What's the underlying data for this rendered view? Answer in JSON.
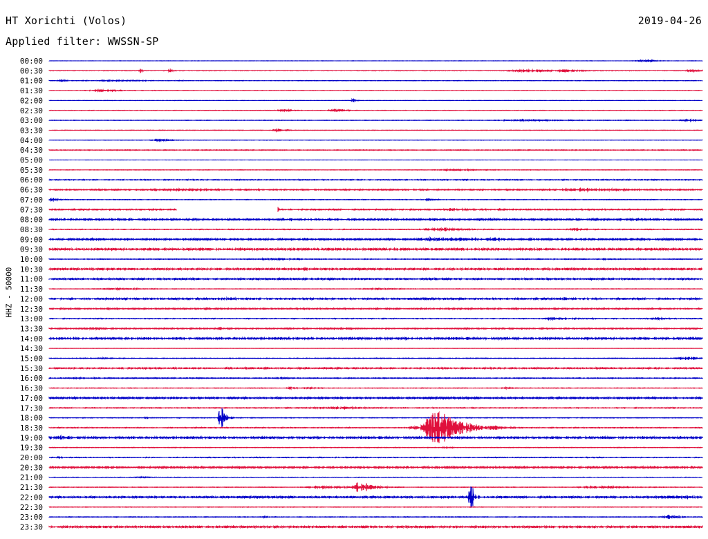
{
  "header": {
    "station": "HT Xorichti (Volos)",
    "filter": "Applied filter: WWSSN-SP",
    "date": "2019-04-26"
  },
  "channel_label": "HHZ - 50000",
  "colors": {
    "blue": "#0000c8",
    "red": "#e0103c"
  },
  "chart_data": {
    "type": "line",
    "title": "HT Xorichti (Volos)",
    "subtitle": "Applied filter: WWSSN-SP",
    "ylabel": "HHZ - 50000",
    "xlabel": "",
    "grid": false,
    "legend": "none",
    "series_colors": [
      "#0000c8",
      "#e0103c"
    ],
    "rows": [
      {
        "label": "00:00",
        "noise": 0.2,
        "events": [
          {
            "x": 0.91,
            "amp": 1.5,
            "dur": 0.02
          }
        ]
      },
      {
        "label": "00:30",
        "noise": 0.3,
        "events": [
          {
            "x": 0.14,
            "amp": 4,
            "dur": 0.003
          },
          {
            "x": 0.184,
            "amp": 4,
            "dur": 0.003
          },
          {
            "x": 0.73,
            "amp": 2,
            "dur": 0.04
          },
          {
            "x": 0.79,
            "amp": 2,
            "dur": 0.02
          },
          {
            "x": 0.985,
            "amp": 2,
            "dur": 0.015
          }
        ]
      },
      {
        "label": "01:00",
        "noise": 0.3,
        "events": [
          {
            "x": 0.02,
            "amp": 1.5,
            "dur": 0.01
          },
          {
            "x": 0.1,
            "amp": 1,
            "dur": 0.06
          }
        ]
      },
      {
        "label": "01:30",
        "noise": 0.3,
        "events": [
          {
            "x": 0.08,
            "amp": 1.5,
            "dur": 0.03
          }
        ]
      },
      {
        "label": "02:00",
        "noise": 0.2,
        "events": [
          {
            "x": 0.465,
            "amp": 3,
            "dur": 0.004
          }
        ]
      },
      {
        "label": "02:30",
        "noise": 0.3,
        "events": [
          {
            "x": 0.36,
            "amp": 1.5,
            "dur": 0.015
          },
          {
            "x": 0.44,
            "amp": 2,
            "dur": 0.015
          }
        ]
      },
      {
        "label": "03:00",
        "noise": 0.3,
        "events": [
          {
            "x": 0.74,
            "amp": 1,
            "dur": 0.08
          },
          {
            "x": 0.98,
            "amp": 1.5,
            "dur": 0.02
          }
        ]
      },
      {
        "label": "03:30",
        "noise": 0.3,
        "events": [
          {
            "x": 0.35,
            "amp": 2,
            "dur": 0.01
          }
        ]
      },
      {
        "label": "04:00",
        "noise": 0.2,
        "events": [
          {
            "x": 0.17,
            "amp": 1.5,
            "dur": 0.02
          }
        ]
      },
      {
        "label": "04:30",
        "noise": 0.5,
        "events": []
      },
      {
        "label": "05:00",
        "noise": 0.15,
        "events": []
      },
      {
        "label": "05:30",
        "noise": 0.3,
        "events": [
          {
            "x": 0.62,
            "amp": 1.2,
            "dur": 0.04
          }
        ]
      },
      {
        "label": "06:00",
        "noise": 0.6,
        "events": []
      },
      {
        "label": "06:30",
        "noise": 0.8,
        "events": [
          {
            "x": 0.2,
            "amp": 1.5,
            "dur": 0.06
          },
          {
            "x": 0.82,
            "amp": 2,
            "dur": 0.06
          }
        ]
      },
      {
        "label": "07:00",
        "noise": 0.4,
        "events": [
          {
            "x": 0.003,
            "amp": 3,
            "dur": 0.008
          },
          {
            "x": 0.58,
            "amp": 1.5,
            "dur": 0.015
          }
        ]
      },
      {
        "label": "07:30",
        "noise": 0.8,
        "events": [
          {
            "x": 0.35,
            "amp": 4,
            "dur": 0.003
          },
          {
            "x": 0.62,
            "amp": 2,
            "dur": 0.02
          }
        ],
        "gaps": [
          [
            0.195,
            0.35
          ]
        ]
      },
      {
        "label": "08:00",
        "noise": 1.2,
        "events": []
      },
      {
        "label": "08:30",
        "noise": 0.5,
        "events": [
          {
            "x": 0.6,
            "amp": 2,
            "dur": 0.04
          },
          {
            "x": 0.81,
            "amp": 2,
            "dur": 0.02
          }
        ]
      },
      {
        "label": "09:00",
        "noise": 1.2,
        "events": [
          {
            "x": 0.6,
            "amp": 3,
            "dur": 0.05
          },
          {
            "x": 0.68,
            "amp": 2,
            "dur": 0.02
          }
        ]
      },
      {
        "label": "09:30",
        "noise": 1.5,
        "events": []
      },
      {
        "label": "10:00",
        "noise": 0.5,
        "events": [
          {
            "x": 0.34,
            "amp": 1.5,
            "dur": 0.03
          },
          {
            "x": 0.85,
            "amp": 1.5,
            "dur": 0.01
          }
        ]
      },
      {
        "label": "10:30",
        "noise": 1.3,
        "events": [
          {
            "x": 0.38,
            "amp": 1.5,
            "dur": 0.02
          }
        ]
      },
      {
        "label": "11:00",
        "noise": 1.0,
        "events": []
      },
      {
        "label": "11:30",
        "noise": 0.3,
        "events": [
          {
            "x": 0.1,
            "amp": 1.5,
            "dur": 0.04
          },
          {
            "x": 0.5,
            "amp": 1.2,
            "dur": 0.03
          }
        ]
      },
      {
        "label": "12:00",
        "noise": 1.0,
        "events": [
          {
            "x": 0.27,
            "amp": 2,
            "dur": 0.02
          },
          {
            "x": 0.79,
            "amp": 2,
            "dur": 0.02
          }
        ]
      },
      {
        "label": "12:30",
        "noise": 0.9,
        "events": []
      },
      {
        "label": "13:00",
        "noise": 0.5,
        "events": [
          {
            "x": 0.77,
            "amp": 1.5,
            "dur": 0.03
          },
          {
            "x": 0.93,
            "amp": 1.5,
            "dur": 0.02
          }
        ]
      },
      {
        "label": "13:30",
        "noise": 0.8,
        "events": [
          {
            "x": 0.07,
            "amp": 2,
            "dur": 0.02
          },
          {
            "x": 0.26,
            "amp": 2.5,
            "dur": 0.015
          },
          {
            "x": 0.44,
            "amp": 1.5,
            "dur": 0.01
          }
        ]
      },
      {
        "label": "14:00",
        "noise": 1.4,
        "events": []
      },
      {
        "label": "14:30",
        "noise": 0.2,
        "events": []
      },
      {
        "label": "15:00",
        "noise": 0.4,
        "events": [
          {
            "x": 0.08,
            "amp": 1.5,
            "dur": 0.01
          },
          {
            "x": 0.975,
            "amp": 2,
            "dur": 0.025
          }
        ]
      },
      {
        "label": "15:30",
        "noise": 0.9,
        "events": []
      },
      {
        "label": "16:00",
        "noise": 0.6,
        "events": [
          {
            "x": 0.05,
            "amp": 1.2,
            "dur": 0.03
          },
          {
            "x": 0.35,
            "amp": 1.2,
            "dur": 0.01
          }
        ]
      },
      {
        "label": "16:30",
        "noise": 0.4,
        "events": [
          {
            "x": 0.37,
            "amp": 1.5,
            "dur": 0.015
          },
          {
            "x": 0.4,
            "amp": 1.5,
            "dur": 0.01
          },
          {
            "x": 0.7,
            "amp": 1.2,
            "dur": 0.01
          }
        ]
      },
      {
        "label": "17:00",
        "noise": 1.2,
        "events": []
      },
      {
        "label": "17:30",
        "noise": 0.6,
        "events": [
          {
            "x": 0.44,
            "amp": 1.5,
            "dur": 0.05
          }
        ]
      },
      {
        "label": "18:00",
        "noise": 0.4,
        "events": [
          {
            "x": 0.263,
            "amp": 22,
            "dur": 0.005
          },
          {
            "x": 0.15,
            "amp": 1.5,
            "dur": 0.01
          }
        ]
      },
      {
        "label": "18:30",
        "noise": 0.6,
        "events": [
          {
            "x": 0.595,
            "amp": 28,
            "dur": 0.03
          },
          {
            "x": 0.56,
            "amp": 2,
            "dur": 0.02
          }
        ]
      },
      {
        "label": "19:00",
        "noise": 1.4,
        "events": [
          {
            "x": 0.02,
            "amp": 2.5,
            "dur": 0.02
          },
          {
            "x": 0.055,
            "amp": 1.5,
            "dur": 0.01
          }
        ]
      },
      {
        "label": "19:30",
        "noise": 0.4,
        "events": [
          {
            "x": 0.61,
            "amp": 1.2,
            "dur": 0.01
          }
        ]
      },
      {
        "label": "20:00",
        "noise": 0.5,
        "events": [
          {
            "x": 0.02,
            "amp": 1.2,
            "dur": 0.01
          }
        ]
      },
      {
        "label": "20:30",
        "noise": 1.3,
        "events": []
      },
      {
        "label": "21:00",
        "noise": 0.3,
        "events": [
          {
            "x": 0.14,
            "amp": 1.2,
            "dur": 0.01
          }
        ]
      },
      {
        "label": "21:30",
        "noise": 0.4,
        "events": [
          {
            "x": 0.42,
            "amp": 2,
            "dur": 0.04
          },
          {
            "x": 0.476,
            "amp": 10,
            "dur": 0.015
          },
          {
            "x": 0.84,
            "amp": 2,
            "dur": 0.04
          }
        ]
      },
      {
        "label": "22:00",
        "noise": 1.2,
        "events": [
          {
            "x": 0.645,
            "amp": 28,
            "dur": 0.004
          },
          {
            "x": 0.95,
            "amp": 2,
            "dur": 0.04
          }
        ]
      },
      {
        "label": "22:30",
        "noise": 0.4,
        "events": []
      },
      {
        "label": "23:00",
        "noise": 0.4,
        "events": [
          {
            "x": 0.95,
            "amp": 3,
            "dur": 0.015
          },
          {
            "x": 0.33,
            "amp": 1.2,
            "dur": 0.005
          }
        ]
      },
      {
        "label": "23:30",
        "noise": 1.3,
        "events": []
      }
    ]
  }
}
